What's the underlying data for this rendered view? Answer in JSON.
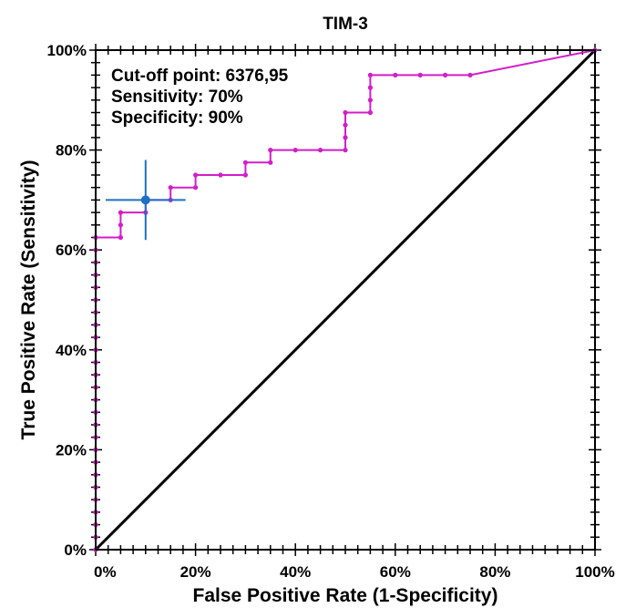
{
  "chart_data": {
    "type": "line",
    "title": "TIM-3",
    "xlabel": "False Positive Rate (1-Specificity)",
    "ylabel": "True Positive Rate (Sensitivity)",
    "xlim": [
      0,
      100
    ],
    "ylim": [
      0,
      100
    ],
    "x_ticks": [
      "0%",
      "20%",
      "40%",
      "60%",
      "80%",
      "100%"
    ],
    "y_ticks": [
      "0%",
      "20%",
      "40%",
      "60%",
      "80%",
      "100%"
    ],
    "x_tick_values": [
      0,
      20,
      40,
      60,
      80,
      100
    ],
    "y_tick_values": [
      0,
      20,
      40,
      60,
      80,
      100
    ],
    "annotations": [
      "Cut-off point: 6376,95",
      "Sensitivity: 70%",
      "Specificity: 90%"
    ],
    "grid": false,
    "series": [
      {
        "color": "#d21ec8",
        "points": [
          [
            0,
            0
          ],
          [
            0,
            2.5
          ],
          [
            0,
            5
          ],
          [
            0,
            7.5
          ],
          [
            0,
            10
          ],
          [
            0,
            12.5
          ],
          [
            0,
            15
          ],
          [
            0,
            17.5
          ],
          [
            0,
            20
          ],
          [
            0,
            22.5
          ],
          [
            0,
            25
          ],
          [
            0,
            27.5
          ],
          [
            0,
            30
          ],
          [
            0,
            32.5
          ],
          [
            0,
            35
          ],
          [
            0,
            37.5
          ],
          [
            0,
            40
          ],
          [
            0,
            42.5
          ],
          [
            0,
            45
          ],
          [
            0,
            47.5
          ],
          [
            0,
            50
          ],
          [
            0,
            52.5
          ],
          [
            0,
            55
          ],
          [
            0,
            57.5
          ],
          [
            0,
            60
          ],
          [
            0,
            62.5
          ],
          [
            5,
            62.5
          ],
          [
            5,
            65
          ],
          [
            5,
            67.5
          ],
          [
            10,
            67.5
          ],
          [
            10,
            70
          ],
          [
            15,
            70
          ],
          [
            15,
            72.5
          ],
          [
            20,
            72.5
          ],
          [
            20,
            75
          ],
          [
            25,
            75
          ],
          [
            30,
            75
          ],
          [
            30,
            77.5
          ],
          [
            35,
            77.5
          ],
          [
            35,
            80
          ],
          [
            40,
            80
          ],
          [
            45,
            80
          ],
          [
            50,
            80
          ],
          [
            50,
            82.5
          ],
          [
            50,
            85
          ],
          [
            50,
            87.5
          ],
          [
            55,
            87.5
          ],
          [
            55,
            90
          ],
          [
            55,
            92.5
          ],
          [
            55,
            95
          ],
          [
            60,
            95
          ],
          [
            65,
            95
          ],
          [
            70,
            95
          ],
          [
            75,
            95
          ],
          [
            100,
            100
          ]
        ]
      },
      {
        "color": "#000000",
        "points": [
          [
            0,
            0
          ],
          [
            100,
            100
          ]
        ]
      }
    ],
    "cutoff_point": {
      "x": 10,
      "y": 70,
      "x_range": [
        2,
        18
      ],
      "y_range": [
        62,
        78
      ],
      "color": "#1f6fc6"
    }
  }
}
